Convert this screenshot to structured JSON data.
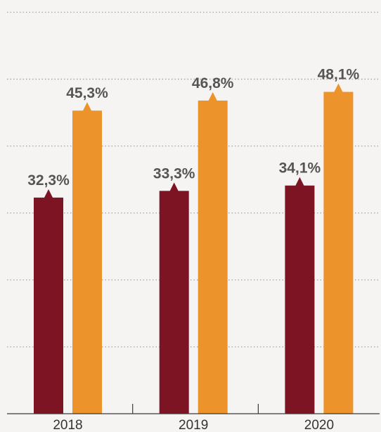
{
  "chart_data": {
    "type": "bar",
    "categories": [
      "2018",
      "2019",
      "2020"
    ],
    "series": [
      {
        "values": [
          32.3,
          33.3,
          34.1
        ],
        "labels": [
          "32,3%",
          "33,3%",
          "34,1%"
        ],
        "color": "#7d1424"
      },
      {
        "values": [
          45.3,
          46.8,
          48.1
        ],
        "labels": [
          "45,3%",
          "46,8%",
          "48,1%"
        ],
        "color": "#ed932b"
      }
    ],
    "ylim": [
      0,
      60
    ],
    "grid": true,
    "xlabel": "",
    "ylabel": "",
    "title": ""
  }
}
